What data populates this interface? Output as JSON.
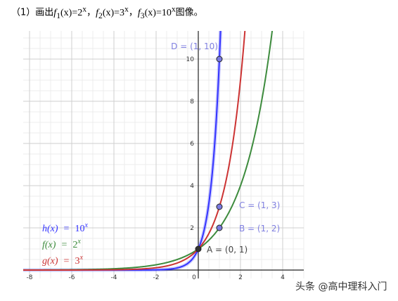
{
  "problem": {
    "number": "（1）",
    "prefix": "画出",
    "f1": {
      "name": "f",
      "sub": "1",
      "arg": "(x)",
      "eq": "=",
      "base": "2",
      "exp": "x"
    },
    "f2": {
      "name": "f",
      "sub": "2",
      "arg": "(x)",
      "eq": "=",
      "base": "3",
      "exp": "x"
    },
    "f3": {
      "name": "f",
      "sub": "3",
      "arg": "(x)",
      "eq": "=",
      "base": "10",
      "exp": "x"
    },
    "sep": "，",
    "suffix": "图像。"
  },
  "watermark": "头条 @高中理科入门",
  "chart_data": {
    "type": "line",
    "title": "",
    "xlabel": "",
    "ylabel": "",
    "xlim": [
      -8.3,
      5.0
    ],
    "ylim": [
      -0.4,
      11.3
    ],
    "x_ticks": [
      -8,
      -6,
      -4,
      -2,
      0,
      2,
      4
    ],
    "y_ticks": [
      2,
      4,
      6,
      8,
      10
    ],
    "grid": true,
    "legend_position": "bottom-left",
    "series": [
      {
        "name": "h(x) = 10^x",
        "label_lhs": "h(x)",
        "label_eq": "=",
        "label_base": "10",
        "label_exp": "x",
        "base": 10,
        "color": "#3333ff",
        "x": [
          -8,
          -4,
          -2,
          -1,
          -0.5,
          0,
          0.5,
          1,
          1.05
        ],
        "y": [
          0.0,
          0.0,
          0.01,
          0.1,
          0.32,
          1,
          3.16,
          10,
          11.2
        ]
      },
      {
        "name": "f(x) = 2^x",
        "label_lhs": "f(x)",
        "label_eq": "=",
        "label_base": "2",
        "label_exp": "x",
        "base": 2,
        "color": "#3d8b3d",
        "x": [
          -8,
          -6,
          -4,
          -2,
          0,
          1,
          2,
          3,
          3.5
        ],
        "y": [
          0.0,
          0.02,
          0.06,
          0.25,
          1,
          2,
          4,
          8,
          11.3
        ]
      },
      {
        "name": "g(x) = 3^x",
        "label_lhs": "g(x)",
        "label_eq": "=",
        "label_base": "3",
        "label_exp": "x",
        "base": 3,
        "color": "#cc3333",
        "x": [
          -8,
          -6,
          -4,
          -2,
          0,
          1,
          2,
          2.2
        ],
        "y": [
          0.0,
          0.0,
          0.01,
          0.11,
          1,
          3,
          9,
          11.2
        ]
      }
    ],
    "points": [
      {
        "label": "A = (0, 1)",
        "x": 0,
        "y": 1,
        "fill": "#333333",
        "label_color": "#444444"
      },
      {
        "label": "B = (1, 2)",
        "x": 1,
        "y": 2,
        "fill": "#7a7ae0",
        "label_color": "#8080e0"
      },
      {
        "label": "C = (1, 3)",
        "x": 1,
        "y": 3,
        "fill": "#7a7ae0",
        "label_color": "#8080e0"
      },
      {
        "label": "D = (1, 10)",
        "x": 1,
        "y": 10,
        "fill": "#7a7ae0",
        "label_color": "#8080e0"
      }
    ]
  }
}
